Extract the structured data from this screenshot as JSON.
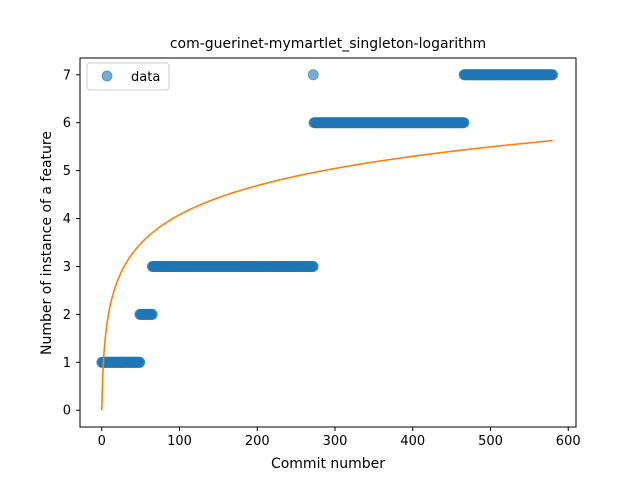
{
  "chart_data": {
    "type": "scatter",
    "title": "com-guerinet-mymartlet_singleton-logarithm",
    "xlabel": "Commit number",
    "ylabel": "Number of instance of a feature",
    "xlim": [
      -28,
      610
    ],
    "ylim": [
      -0.35,
      7.35
    ],
    "xticks": [
      0,
      100,
      200,
      300,
      400,
      500,
      600
    ],
    "yticks": [
      0,
      1,
      2,
      3,
      4,
      5,
      6,
      7
    ],
    "grid": false,
    "legend_position": "upper-left",
    "colors": {
      "points": "#1f77b4",
      "fit": "#ff7f0e"
    },
    "series": [
      {
        "name": "data",
        "kind": "scatter",
        "segments": [
          {
            "x_start": 0,
            "x_end": 49,
            "y": 1
          },
          {
            "x_start": 49,
            "x_end": 65,
            "y": 2
          },
          {
            "x_start": 65,
            "x_end": 272,
            "y": 3
          },
          {
            "x_start": 272,
            "x_end": 272,
            "y": 7
          },
          {
            "x_start": 273,
            "x_end": 466,
            "y": 6
          },
          {
            "x_start": 466,
            "x_end": 580,
            "y": 7
          }
        ]
      },
      {
        "kind": "line",
        "fit": "logarithmic",
        "coef_a": 0.8839,
        "x_range": [
          0,
          580
        ]
      }
    ]
  }
}
